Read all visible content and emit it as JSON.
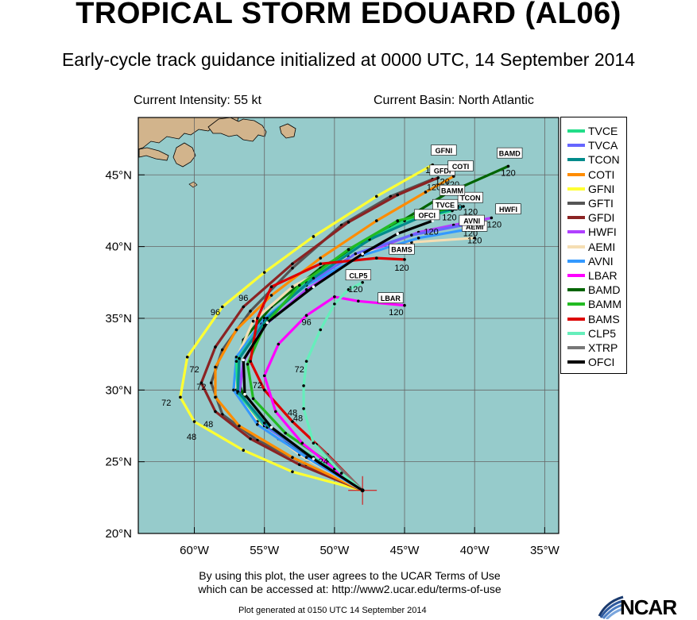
{
  "header": {
    "title": "TROPICAL STORM EDOUARD (AL06)",
    "subtitle": "Early-cycle track guidance initialized at 0000 UTC, 14 September 2014",
    "current_intensity": "Current Intensity: 55 kt",
    "current_basin": "Current Basin: North Atlantic"
  },
  "footer": {
    "terms_line1": "By using this plot, the user agrees to the UCAR Terms of Use",
    "terms_line2": "which can be accessed at: http://www2.ucar.edu/terms-of-use",
    "generated": "Plot generated at 0150 UTC   14 September 2014",
    "logo_text": "NCAR"
  },
  "map": {
    "ocean_color": "#96CBCB",
    "land_color": "#D2B48C",
    "lat_labels": [
      "20°N",
      "25°N",
      "30°N",
      "35°N",
      "40°N",
      "45°N"
    ],
    "lon_labels": [
      "60°W",
      "55°W",
      "50°W",
      "45°W",
      "40°W",
      "35°W"
    ],
    "storm_center": {
      "lon": -48.0,
      "lat": 23.0
    }
  },
  "legend": [
    {
      "name": "TVCE",
      "color": "#22DD88"
    },
    {
      "name": "TVCA",
      "color": "#6666FF"
    },
    {
      "name": "TCON",
      "color": "#008B8B"
    },
    {
      "name": "COTI",
      "color": "#FF8C00"
    },
    {
      "name": "GFNI",
      "color": "#FFFF33"
    },
    {
      "name": "GFTI",
      "color": "#555555"
    },
    {
      "name": "GFDI",
      "color": "#8B2323"
    },
    {
      "name": "HWFI",
      "color": "#B040FF"
    },
    {
      "name": "AEMI",
      "color": "#F5DEB3"
    },
    {
      "name": "AVNI",
      "color": "#3399FF"
    },
    {
      "name": "LBAR",
      "color": "#FF00FF"
    },
    {
      "name": "BAMD",
      "color": "#006400"
    },
    {
      "name": "BAMM",
      "color": "#22BB22"
    },
    {
      "name": "BAMS",
      "color": "#DD0000"
    },
    {
      "name": "CLP5",
      "color": "#66EEBB"
    },
    {
      "name": "XTRP",
      "color": "#777777"
    },
    {
      "name": "OFCI",
      "color": "#000000"
    }
  ],
  "chart_data": {
    "type": "map-tracks",
    "xlim": [
      -64,
      -34
    ],
    "ylim": [
      20,
      49
    ],
    "tracks": [
      {
        "name": "GFNI",
        "color": "#FFFF33",
        "points": [
          [
            -48,
            23
          ],
          [
            -53,
            24.3
          ],
          [
            -56.5,
            25.8
          ],
          [
            -60,
            27.8
          ],
          [
            -61,
            29.5
          ],
          [
            -60.5,
            32.3
          ],
          [
            -58,
            35.8
          ],
          [
            -55,
            38.2
          ],
          [
            -51.5,
            40.7
          ],
          [
            -47,
            43.5
          ],
          [
            -43,
            45.7
          ]
        ],
        "labels": [
          {
            "t": "48",
            "lon": -60.2,
            "lat": 26.8
          },
          {
            "t": "72",
            "lon": -62,
            "lat": 29.2
          },
          {
            "t": "96",
            "lon": -58.5,
            "lat": 35.5
          },
          {
            "t": "120",
            "lon": -43,
            "lat": 45.4
          }
        ],
        "endbox": "GFNI",
        "endbox_pos": [
          -42.2,
          46.7
        ]
      },
      {
        "name": "GFTI",
        "color": "#555555",
        "points": [
          [
            -48,
            23
          ],
          [
            -52,
            24.8
          ],
          [
            -55.5,
            26.5
          ],
          [
            -58,
            28.3
          ],
          [
            -58.8,
            30.5
          ],
          [
            -58,
            32.8
          ],
          [
            -56,
            35.5
          ],
          [
            -53,
            38.5
          ],
          [
            -49.5,
            41.5
          ],
          [
            -46,
            43.5
          ],
          [
            -43,
            44.7
          ]
        ],
        "labels": [
          {
            "t": "48",
            "lon": -59,
            "lat": 27.7
          },
          {
            "t": "72",
            "lon": -59.5,
            "lat": 30.3
          },
          {
            "t": "96",
            "lon": -56.5,
            "lat": 36.5
          },
          {
            "t": "120",
            "lon": -42.9,
            "lat": 44.2
          }
        ]
      },
      {
        "name": "GFDI",
        "color": "#8B2323",
        "points": [
          [
            -48,
            23
          ],
          [
            -52.5,
            24.8
          ],
          [
            -56,
            26.6
          ],
          [
            -58.5,
            28.5
          ],
          [
            -59.5,
            30.5
          ],
          [
            -58.5,
            33
          ],
          [
            -56.5,
            35.8
          ],
          [
            -53,
            38.8
          ],
          [
            -49,
            41.7
          ],
          [
            -45.5,
            43.6
          ],
          [
            -42.6,
            44.8
          ]
        ],
        "labels": [
          {
            "t": "72",
            "lon": -60,
            "lat": 31.5
          },
          {
            "t": "120",
            "lon": -42.3,
            "lat": 44.6
          }
        ],
        "endbox": "GFDI",
        "endbox_pos": [
          -42.3,
          45.3
        ]
      },
      {
        "name": "BAMD",
        "color": "#006400",
        "points": [
          [
            -48,
            23
          ],
          [
            -51,
            24.9
          ],
          [
            -54,
            26.6
          ],
          [
            -56.2,
            28.8
          ],
          [
            -57,
            31
          ],
          [
            -56.5,
            33.5
          ],
          [
            -54.5,
            35.8
          ],
          [
            -51,
            38.5
          ],
          [
            -46,
            41.3
          ],
          [
            -42,
            43.7
          ],
          [
            -37.6,
            45.6
          ]
        ],
        "labels": [
          {
            "t": "120",
            "lon": -37.6,
            "lat": 45.2
          }
        ],
        "endbox": "BAMD",
        "endbox_pos": [
          -37.5,
          46.5
        ]
      },
      {
        "name": "COTI",
        "color": "#FF8C00",
        "points": [
          [
            -48,
            23
          ],
          [
            -53,
            25.3
          ],
          [
            -56.8,
            27.5
          ],
          [
            -58.5,
            29.5
          ],
          [
            -58.5,
            31.6
          ],
          [
            -57,
            34.2
          ],
          [
            -54.5,
            36.6
          ],
          [
            -51,
            39.2
          ],
          [
            -47,
            41.8
          ],
          [
            -43.5,
            43.8
          ],
          [
            -41.5,
            44.9
          ]
        ],
        "labels": [
          {
            "t": "120",
            "lon": -41.6,
            "lat": 44.4
          }
        ],
        "endbox": "COTI",
        "endbox_pos": [
          -41,
          45.6
        ]
      },
      {
        "name": "HWFI",
        "color": "#B040FF",
        "points": [
          [
            -48,
            23
          ],
          [
            -52,
            25.3
          ],
          [
            -55.5,
            27.6
          ],
          [
            -56.8,
            29.7
          ],
          [
            -56.5,
            32
          ],
          [
            -55,
            34.5
          ],
          [
            -52,
            37
          ],
          [
            -48,
            39.5
          ],
          [
            -44,
            41
          ],
          [
            -41.5,
            41.5
          ],
          [
            -38.8,
            42
          ]
        ],
        "labels": [
          {
            "t": "120",
            "lon": -38.6,
            "lat": 41.6
          }
        ],
        "endbox": "HWFI",
        "endbox_pos": [
          -37.6,
          42.6
        ]
      },
      {
        "name": "AEMI",
        "color": "#F5DEB3",
        "points": [
          [
            -48,
            23
          ],
          [
            -52.5,
            25.5
          ],
          [
            -55.5,
            27.8
          ],
          [
            -57,
            30
          ],
          [
            -57,
            32.2
          ],
          [
            -55.8,
            34.8
          ],
          [
            -53,
            37.2
          ],
          [
            -49,
            39.3
          ],
          [
            -44.5,
            40.3
          ],
          [
            -40,
            40.6
          ]
        ],
        "labels": [
          {
            "t": "120",
            "lon": -40,
            "lat": 40.5
          }
        ],
        "endbox": "AEMI",
        "endbox_pos": [
          -40,
          41.4
        ]
      },
      {
        "name": "AVNI",
        "color": "#3399FF",
        "points": [
          [
            -48,
            23
          ],
          [
            -52,
            25.3
          ],
          [
            -55.5,
            27.6
          ],
          [
            -57.2,
            30
          ],
          [
            -57,
            32.3
          ],
          [
            -55,
            35
          ],
          [
            -52,
            37.3
          ],
          [
            -48,
            39.4
          ],
          [
            -44,
            40.6
          ],
          [
            -40.5,
            41.2
          ]
        ],
        "labels": [
          {
            "t": "120",
            "lon": -40.3,
            "lat": 41
          }
        ],
        "endbox": "AVNI",
        "endbox_pos": [
          -40.2,
          41.8
        ]
      },
      {
        "name": "TVCE",
        "color": "#22DD88",
        "points": [
          [
            -48,
            23
          ],
          [
            -51.5,
            25.3
          ],
          [
            -55,
            27.5
          ],
          [
            -56.9,
            29.8
          ],
          [
            -57,
            32
          ],
          [
            -55.2,
            34.6
          ],
          [
            -52,
            37.5
          ],
          [
            -48,
            40.2
          ],
          [
            -45,
            41.8
          ],
          [
            -41.6,
            42.5
          ]
        ],
        "labels": [
          {
            "t": "120",
            "lon": -41.8,
            "lat": 42.1
          }
        ],
        "endbox": "TVCE",
        "endbox_pos": [
          -42.1,
          42.9
        ]
      },
      {
        "name": "TVCA",
        "color": "#6666FF",
        "points": [
          [
            -48,
            23
          ],
          [
            -51.5,
            25.2
          ],
          [
            -54.8,
            27.4
          ],
          [
            -56.8,
            29.8
          ],
          [
            -56.8,
            32.2
          ],
          [
            -55,
            34.8
          ],
          [
            -52,
            37.4
          ],
          [
            -48.5,
            39.5
          ],
          [
            -44.5,
            40.8
          ],
          [
            -40.8,
            41.5
          ]
        ],
        "labels": []
      },
      {
        "name": "TCON",
        "color": "#008B8B",
        "points": [
          [
            -48,
            23
          ],
          [
            -51.8,
            25.4
          ],
          [
            -55,
            27.7
          ],
          [
            -56.9,
            29.9
          ],
          [
            -56.8,
            32.2
          ],
          [
            -54.8,
            35
          ],
          [
            -51.5,
            37.8
          ],
          [
            -47.5,
            40.5
          ],
          [
            -44,
            42
          ],
          [
            -40.8,
            42.8
          ]
        ],
        "labels": [
          {
            "t": "120",
            "lon": -40.3,
            "lat": 42.5
          }
        ],
        "endbox": "TCON",
        "endbox_pos": [
          -40.3,
          43.4
        ]
      },
      {
        "name": "BAMM",
        "color": "#22BB22",
        "points": [
          [
            -48,
            23
          ],
          [
            -50.5,
            25
          ],
          [
            -53.5,
            27
          ],
          [
            -55.8,
            29.4
          ],
          [
            -56.2,
            31.8
          ],
          [
            -55,
            34.5
          ],
          [
            -52.5,
            37.3
          ],
          [
            -49,
            39.8
          ],
          [
            -45.5,
            41.8
          ],
          [
            -41.2,
            42.8
          ]
        ],
        "labels": [
          {
            "t": "120",
            "lon": -41.4,
            "lat": 42.8
          }
        ],
        "endbox": "BAMM",
        "endbox_pos": [
          -41.6,
          43.9
        ]
      },
      {
        "name": "BAMS",
        "color": "#DD0000",
        "points": [
          [
            -48,
            23
          ],
          [
            -50.5,
            25.5
          ],
          [
            -53,
            27.8
          ],
          [
            -55,
            30
          ],
          [
            -56,
            32
          ],
          [
            -55.5,
            35
          ],
          [
            -54.5,
            37.2
          ],
          [
            -51,
            38.8
          ],
          [
            -47,
            39.2
          ],
          [
            -45,
            39.1
          ]
        ],
        "labels": [
          {
            "t": "120",
            "lon": -45.2,
            "lat": 38.6
          }
        ],
        "endbox": "BAMS",
        "endbox_pos": [
          -45.2,
          39.8
        ]
      },
      {
        "name": "XTRP",
        "color": "#777777",
        "points": [
          [
            -48,
            23
          ],
          [
            -51.3,
            26.2
          ]
        ],
        "labels": [
          {
            "t": "24",
            "lon": -50.8,
            "lat": 25.1
          }
        ]
      },
      {
        "name": "LBAR",
        "color": "#FF00FF",
        "points": [
          [
            -48,
            23
          ],
          [
            -50,
            24.5
          ],
          [
            -52.3,
            26.3
          ],
          [
            -54.2,
            28.5
          ],
          [
            -55,
            31
          ],
          [
            -54,
            33.2
          ],
          [
            -52,
            35.2
          ],
          [
            -50,
            36.5
          ],
          [
            -48.3,
            36.2
          ],
          [
            -45,
            35.9
          ]
        ],
        "labels": [
          {
            "t": "48",
            "lon": -53,
            "lat": 28.5
          },
          {
            "t": "72",
            "lon": -55.5,
            "lat": 30.4
          },
          {
            "t": "96",
            "lon": -52,
            "lat": 34.8
          },
          {
            "t": "120",
            "lon": -45.6,
            "lat": 35.5
          }
        ],
        "endbox": "LBAR",
        "endbox_pos": [
          -46,
          36.4
        ]
      },
      {
        "name": "CLP5",
        "color": "#66EEBB",
        "points": [
          [
            -48,
            23
          ],
          [
            -49.5,
            24.2
          ],
          [
            -51.5,
            26.3
          ],
          [
            -52.2,
            28.7
          ],
          [
            -52.2,
            30.3
          ],
          [
            -52,
            32
          ],
          [
            -51,
            34.2
          ],
          [
            -50,
            36
          ],
          [
            -49,
            37
          ],
          [
            -48,
            37.5
          ]
        ],
        "labels": [
          {
            "t": "48",
            "lon": -52.6,
            "lat": 28.1
          },
          {
            "t": "72",
            "lon": -52.5,
            "lat": 31.5
          },
          {
            "t": "120",
            "lon": -48.5,
            "lat": 37.1
          }
        ],
        "endbox": "CLP5",
        "endbox_pos": [
          -48.3,
          38
        ]
      },
      {
        "name": "OFCI",
        "color": "#000000",
        "points": [
          [
            -48,
            23
          ],
          [
            -51.5,
            25.2
          ],
          [
            -54.5,
            27.4
          ],
          [
            -56.4,
            29.7
          ],
          [
            -56.5,
            32.1
          ],
          [
            -54.8,
            34.7
          ],
          [
            -51.5,
            37.2
          ],
          [
            -48,
            39.5
          ],
          [
            -45.5,
            40.9
          ],
          [
            -43,
            41.8
          ]
        ],
        "labels": [
          {
            "t": "120",
            "lon": -43.1,
            "lat": 41.1
          }
        ],
        "endbox": "OFCI",
        "endbox_pos": [
          -43.4,
          42.2
        ]
      }
    ]
  }
}
